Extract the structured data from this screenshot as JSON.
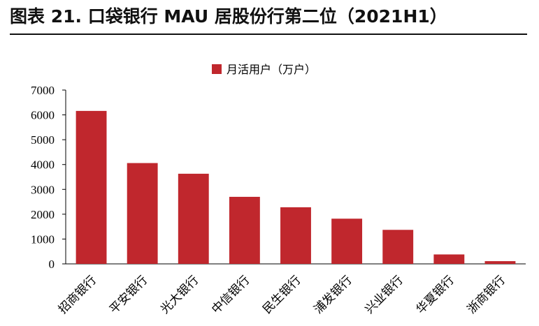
{
  "header": {
    "title": "图表 21. 口袋银行 MAU 居股份行第二位（2021H1）"
  },
  "chart_data": {
    "type": "bar",
    "categories": [
      "招商银行",
      "平安银行",
      "光大银行",
      "中信银行",
      "民生银行",
      "浦发银行",
      "兴业银行",
      "华夏银行",
      "浙商银行"
    ],
    "series": [
      {
        "name": "月活用户（万户）",
        "color": "#C0272D",
        "values": [
          6160,
          4060,
          3630,
          2700,
          2280,
          1820,
          1370,
          380,
          110
        ]
      }
    ],
    "yticks": [
      0,
      1000,
      2000,
      3000,
      4000,
      5000,
      6000,
      7000
    ],
    "ylim": [
      0,
      7000
    ],
    "legend_position": "top-center",
    "grid": false
  }
}
